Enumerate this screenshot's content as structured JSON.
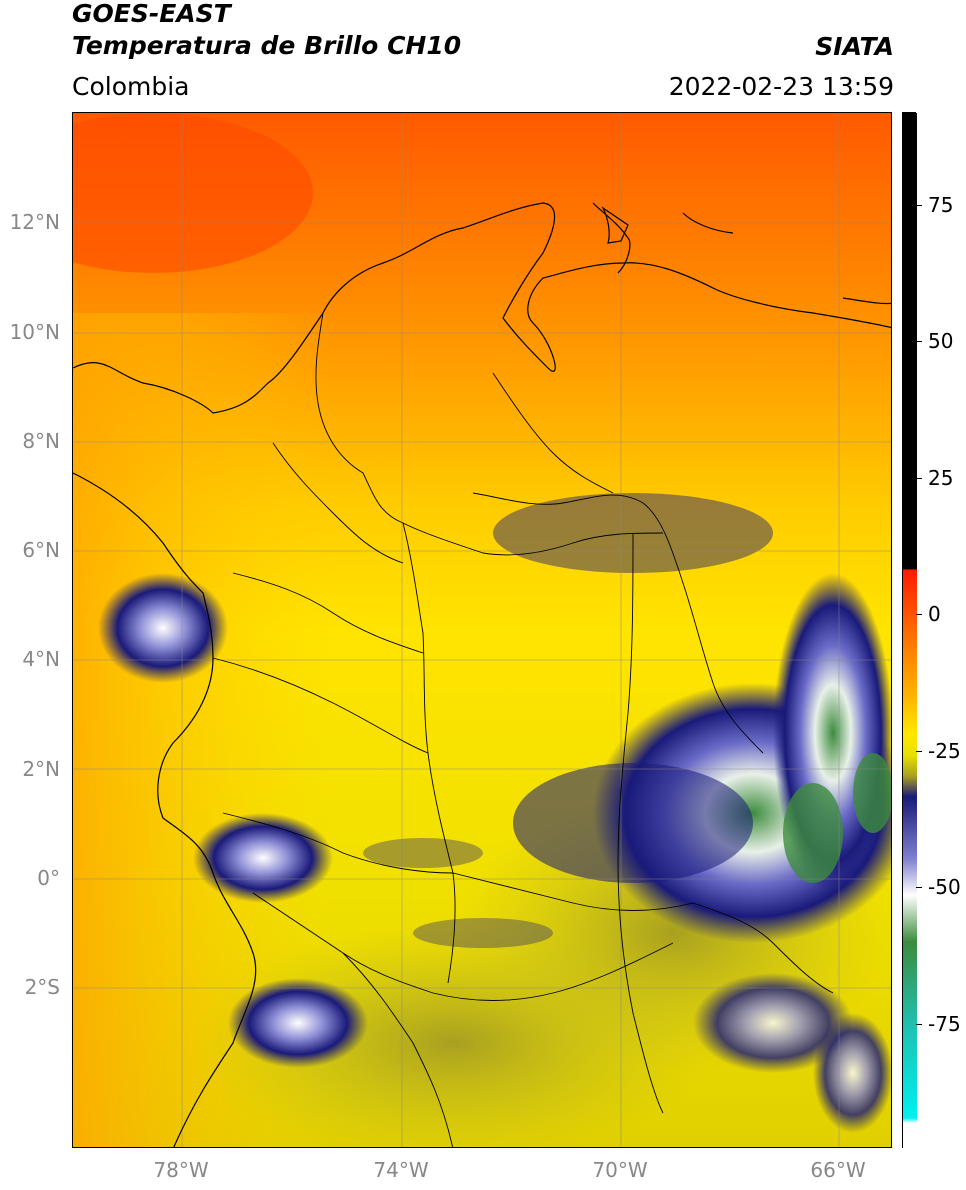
{
  "header": {
    "title_line1": "GOES-EAST",
    "title_line2": "Temperatura de Brillo CH10",
    "region": "Colombia",
    "brand": "SIATA",
    "datetime": "2022-02-23 13:59"
  },
  "axes": {
    "lat_labels": [
      "12°N",
      "10°N",
      "8°N",
      "6°N",
      "4°N",
      "2°N",
      "0°",
      "2°S"
    ],
    "lon_labels": [
      "78°W",
      "74°W",
      "70°W",
      "66°W"
    ]
  },
  "colorbar": {
    "ticks": [
      "75",
      "50",
      "25",
      "0",
      "-25",
      "-50",
      "-75"
    ],
    "colors": {
      "warm_red": "#ff3b00",
      "orange": "#ff8c00",
      "yellow": "#ffe800",
      "olive": "#b8b020",
      "navy": "#1a1a7a",
      "white": "#ffffff",
      "green": "#3c8c3c",
      "teal": "#20c0b0",
      "cyan": "#00f0f0",
      "black": "#000000"
    }
  }
}
